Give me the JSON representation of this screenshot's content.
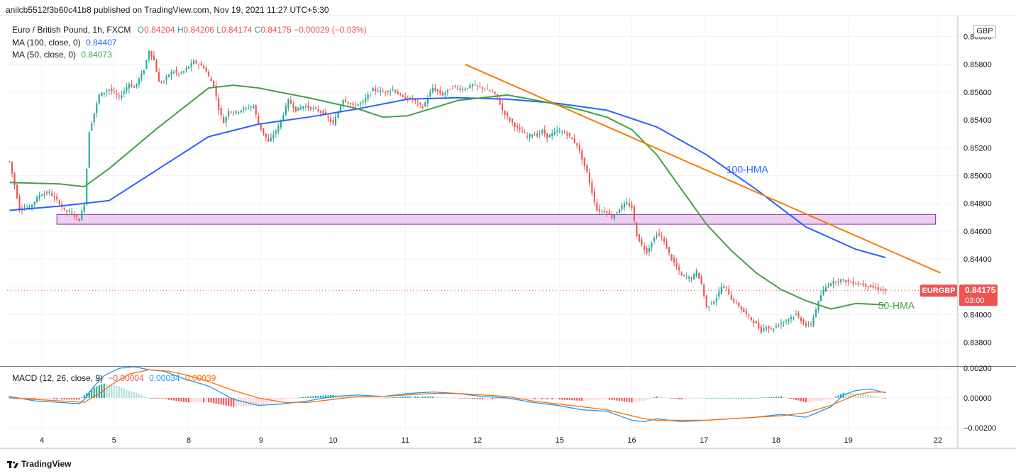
{
  "publisher_line": "anilcb5512f3b60c41b8 published on TradingView.com, Nov 19, 2021 11:27 UTC+5:30",
  "symbol_line": {
    "name": "Euro / British Pound, 1h, FXCM",
    "o_label": "O",
    "o": "0.84204",
    "h_label": "H",
    "h": "0.84206",
    "l_label": "L",
    "l": "0.84174",
    "c_label": "C",
    "c": "0.84175",
    "change": "−0.00029 (−0.03%)"
  },
  "ma100": {
    "label": "MA (100, close, 0)",
    "value": "0.84407",
    "color": "#2962ff"
  },
  "ma50": {
    "label": "MA (50, close, 0)",
    "value": "0.84073",
    "color": "#43a047"
  },
  "macd_legend": {
    "label": "MACD (12, 26, close, 9)",
    "hist": "−0.00004",
    "macd": "0.00034",
    "signal": "0.00039"
  },
  "currency_button": "GBP",
  "price_tag": {
    "symbol": "EURGBP",
    "price": "0.84175",
    "countdown": "03:00"
  },
  "annotations": {
    "hma100": "100-HMA",
    "hma50": "50-HMA"
  },
  "footer": "TradingView",
  "colors": {
    "up": "#26a69a",
    "down": "#ef5350",
    "ma100": "#2962ff",
    "ma50": "#43a047",
    "trendline": "#f57c00",
    "zone_fill": "#e1bee7",
    "zone_stroke": "#9c27b0",
    "macd_line": "#2196f3",
    "signal_line": "#ff6d00"
  },
  "chart_data": [
    {
      "type": "candlestick",
      "title": "Euro / British Pound, 1h, FXCM",
      "x_ticks": [
        {
          "label": "4",
          "index": 13
        },
        {
          "label": "5",
          "index": 42
        },
        {
          "label": "8",
          "index": 72
        },
        {
          "label": "9",
          "index": 101
        },
        {
          "label": "10",
          "index": 130
        },
        {
          "label": "11",
          "index": 159
        },
        {
          "label": "12",
          "index": 188
        },
        {
          "label": "15",
          "index": 221
        },
        {
          "label": "16",
          "index": 250
        },
        {
          "label": "17",
          "index": 279
        },
        {
          "label": "18",
          "index": 308
        },
        {
          "label": "19",
          "index": 337
        },
        {
          "label": "22",
          "index": 373
        }
      ],
      "x_range": [
        -1,
        381
      ],
      "y_ticks": [
        0.838,
        0.84,
        0.842,
        0.844,
        0.846,
        0.848,
        0.85,
        0.852,
        0.854,
        0.856,
        0.858,
        0.86
      ],
      "y_tick_labels": [
        "0.83800",
        "0.84000",
        "0.84200",
        "0.84400",
        "0.84600",
        "0.84800",
        "0.85000",
        "0.85200",
        "0.85400",
        "0.85600",
        "0.85800",
        "0.86000"
      ],
      "ylim": [
        0.8363,
        0.8612
      ],
      "series": [
        {
          "name": "MA (100, close, 0)",
          "role": "ma100",
          "x": [
            0,
            20,
            40,
            60,
            80,
            100,
            120,
            140,
            160,
            180,
            200,
            220,
            240,
            260,
            280,
            300,
            320,
            340,
            352
          ],
          "y": [
            0.8475,
            0.8478,
            0.8482,
            0.8505,
            0.8528,
            0.8537,
            0.8542,
            0.8548,
            0.8555,
            0.8556,
            0.8555,
            0.8552,
            0.8547,
            0.8535,
            0.8515,
            0.849,
            0.8463,
            0.8447,
            0.8441
          ]
        },
        {
          "name": "MA (50, close, 0)",
          "role": "ma50",
          "x": [
            0,
            20,
            30,
            40,
            60,
            80,
            90,
            100,
            120,
            140,
            150,
            160,
            180,
            200,
            215,
            230,
            240,
            250,
            260,
            270,
            280,
            290,
            300,
            310,
            320,
            330,
            340,
            352
          ],
          "y": [
            0.8495,
            0.8494,
            0.8492,
            0.8505,
            0.8535,
            0.8563,
            0.8565,
            0.8563,
            0.8556,
            0.8548,
            0.8542,
            0.8543,
            0.8554,
            0.8558,
            0.8553,
            0.8547,
            0.8542,
            0.8533,
            0.8515,
            0.849,
            0.8465,
            0.8446,
            0.843,
            0.8418,
            0.841,
            0.8404,
            0.8408,
            0.8407
          ]
        }
      ],
      "candle_keyframes": {
        "x": [
          0,
          4,
          8,
          12,
          16,
          20,
          22,
          25,
          28,
          30,
          31,
          32,
          34,
          36,
          40,
          44,
          48,
          50,
          54,
          56,
          58,
          60,
          62,
          64,
          66,
          68,
          70,
          74,
          78,
          80,
          82,
          84,
          86,
          88,
          90,
          94,
          98,
          100,
          104,
          108,
          112,
          115,
          118,
          122,
          126,
          130,
          134,
          138,
          142,
          146,
          150,
          154,
          158,
          162,
          166,
          170,
          174,
          178,
          182,
          186,
          190,
          194,
          196,
          198,
          200,
          204,
          208,
          210,
          212,
          214,
          216,
          220,
          224,
          228,
          232,
          234,
          236,
          240,
          242,
          246,
          248,
          250,
          252,
          254,
          256,
          258,
          260,
          262,
          264,
          266,
          270,
          274,
          276,
          278,
          280,
          284,
          286,
          288,
          290,
          292,
          296,
          300,
          302,
          304,
          306,
          308,
          312,
          316,
          320,
          322,
          324,
          326,
          328,
          330,
          334,
          338,
          342,
          346,
          350,
          352
        ],
        "y": [
          0.851,
          0.8476,
          0.8477,
          0.8486,
          0.8488,
          0.848,
          0.8475,
          0.8473,
          0.8468,
          0.848,
          0.8505,
          0.8532,
          0.8545,
          0.8558,
          0.8562,
          0.8556,
          0.8566,
          0.8563,
          0.8576,
          0.859,
          0.8583,
          0.8567,
          0.8568,
          0.8573,
          0.8575,
          0.8573,
          0.8575,
          0.8582,
          0.8578,
          0.8571,
          0.8565,
          0.8548,
          0.8538,
          0.8547,
          0.8545,
          0.8548,
          0.855,
          0.8537,
          0.8524,
          0.8535,
          0.8554,
          0.8547,
          0.855,
          0.8548,
          0.8545,
          0.8537,
          0.8555,
          0.855,
          0.8553,
          0.8562,
          0.856,
          0.8562,
          0.8556,
          0.8555,
          0.8549,
          0.8563,
          0.8558,
          0.8564,
          0.8562,
          0.8565,
          0.8563,
          0.856,
          0.8556,
          0.8547,
          0.8542,
          0.8534,
          0.8528,
          0.853,
          0.8529,
          0.8532,
          0.8528,
          0.8532,
          0.853,
          0.8522,
          0.8502,
          0.8488,
          0.8475,
          0.8474,
          0.847,
          0.8478,
          0.848,
          0.8477,
          0.8457,
          0.845,
          0.8445,
          0.8452,
          0.8458,
          0.8456,
          0.8448,
          0.844,
          0.8428,
          0.8426,
          0.8431,
          0.8422,
          0.8405,
          0.8412,
          0.842,
          0.8419,
          0.8411,
          0.8408,
          0.84,
          0.8393,
          0.8388,
          0.8392,
          0.8389,
          0.8392,
          0.8396,
          0.84,
          0.8392,
          0.8393,
          0.8404,
          0.8414,
          0.842,
          0.8423,
          0.8425,
          0.8423,
          0.8422,
          0.842,
          0.8418,
          0.84175
        ]
      },
      "support_zone": [
        0.8465,
        0.8472
      ],
      "support_zone_x": [
        19,
        372
      ],
      "trendline": {
        "x": [
          183,
          374
        ],
        "y": [
          0.858,
          0.843
        ]
      },
      "current_price": 0.84175
    },
    {
      "type": "macd",
      "title": "MACD (12, 26, close, 9)",
      "y_ticks": [
        -0.002,
        0.0,
        0.002
      ],
      "y_tick_labels": [
        "−0.00200",
        "0.00000",
        "0.00200"
      ],
      "ylim": [
        -0.0022,
        0.0021
      ],
      "series": [
        {
          "name": "MACD",
          "role": "macd_line",
          "x": [
            0,
            10,
            20,
            28,
            30,
            34,
            38,
            44,
            50,
            56,
            62,
            70,
            80,
            90,
            100,
            110,
            120,
            130,
            140,
            150,
            160,
            170,
            180,
            190,
            200,
            210,
            220,
            230,
            240,
            245,
            250,
            255,
            260,
            270,
            280,
            290,
            300,
            310,
            320,
            330,
            335,
            340,
            346,
            352
          ],
          "y": [
            0.0001,
            -0.0002,
            -0.0003,
            -0.0004,
            -0.0001,
            0.0008,
            0.0015,
            0.002,
            0.0021,
            0.0019,
            0.0018,
            0.0013,
            0.0008,
            -0.0001,
            -0.0005,
            -0.0004,
            -0.0002,
            0.0001,
            0.0002,
            0.0001,
            0.0003,
            0.0004,
            0.0003,
            0.0001,
            0.0,
            -0.0003,
            -0.0005,
            -0.0008,
            -0.0009,
            -0.0012,
            -0.0015,
            -0.0016,
            -0.0014,
            -0.0016,
            -0.0015,
            -0.0014,
            -0.0013,
            -0.0011,
            -0.0013,
            -0.0006,
            0.0002,
            0.0005,
            0.0006,
            0.00034
          ]
        },
        {
          "name": "Signal",
          "role": "signal_line",
          "x": [
            0,
            10,
            20,
            30,
            36,
            42,
            48,
            56,
            64,
            72,
            80,
            90,
            100,
            110,
            120,
            130,
            140,
            150,
            160,
            170,
            180,
            190,
            200,
            210,
            220,
            230,
            240,
            250,
            255,
            260,
            270,
            280,
            290,
            300,
            310,
            320,
            330,
            340,
            346,
            352
          ],
          "y": [
            0.0,
            -0.0001,
            -0.0002,
            -0.0003,
            0.0003,
            0.001,
            0.0016,
            0.0019,
            0.0018,
            0.0015,
            0.0011,
            0.0005,
            0.0,
            -0.0003,
            -0.0003,
            -0.0001,
            0.0001,
            0.0001,
            0.0002,
            0.0003,
            0.0003,
            0.0002,
            0.0001,
            -0.0002,
            -0.0004,
            -0.0006,
            -0.0008,
            -0.0012,
            -0.0014,
            -0.0015,
            -0.0015,
            -0.0015,
            -0.0014,
            -0.0013,
            -0.0012,
            -0.001,
            -0.0005,
            0.0002,
            0.0004,
            0.00039
          ]
        }
      ]
    }
  ]
}
